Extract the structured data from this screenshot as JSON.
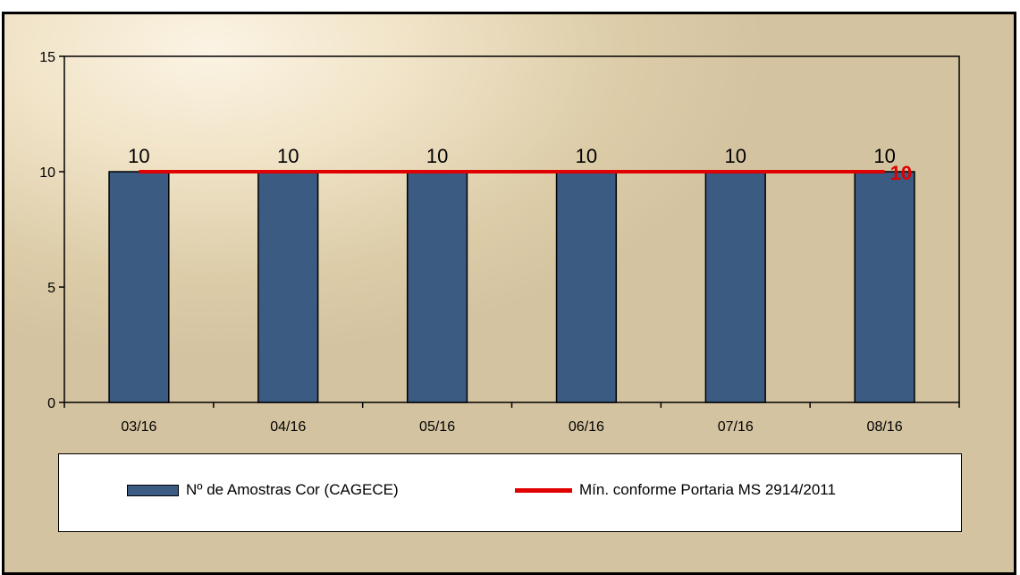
{
  "chart_data": {
    "type": "bar",
    "categories": [
      "03/16",
      "04/16",
      "05/16",
      "06/16",
      "07/16",
      "08/16"
    ],
    "series": [
      {
        "name": "Nº de Amostras Cor (CAGECE)",
        "type": "bar",
        "values": [
          10,
          10,
          10,
          10,
          10,
          10
        ],
        "color": "#3b5b82"
      },
      {
        "name": "Mín. conforme Portaria MS 2914/2011",
        "type": "line",
        "values": [
          10,
          10,
          10,
          10,
          10,
          10
        ],
        "color": "#e00000",
        "end_label": "10"
      }
    ],
    "yticks": [
      "0",
      "5",
      "10",
      "15"
    ],
    "ylim": [
      0,
      15
    ],
    "data_labels": [
      "10",
      "10",
      "10",
      "10",
      "10",
      "10"
    ],
    "grid": false,
    "legend": "bottom"
  }
}
